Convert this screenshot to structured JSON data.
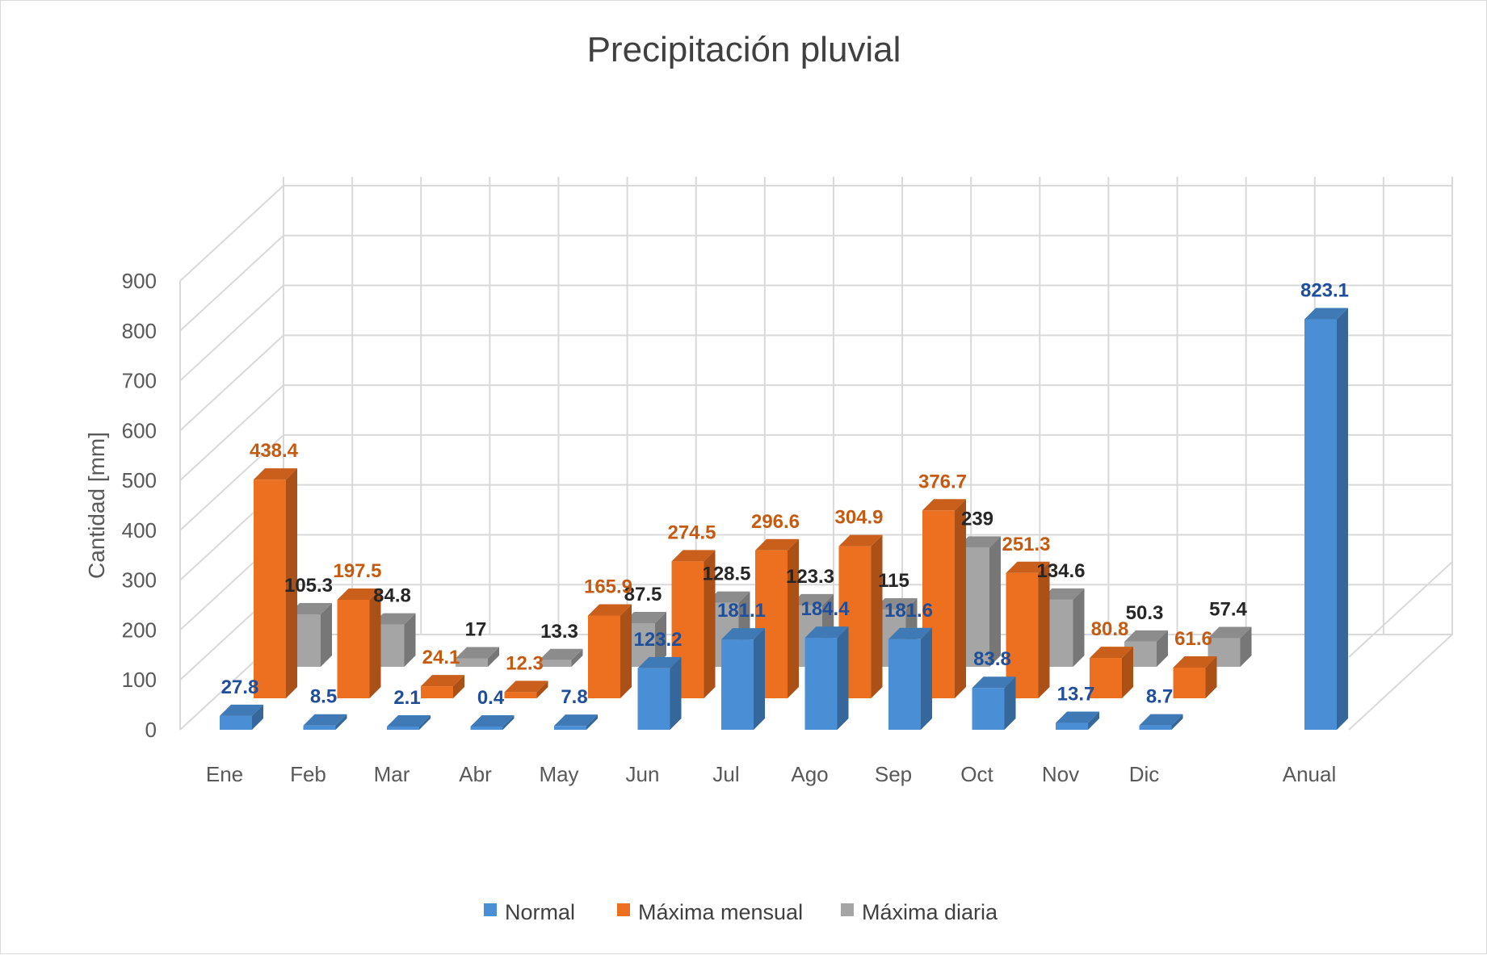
{
  "chart_data": {
    "type": "bar",
    "title": "Precipitación pluvial",
    "xlabel": "",
    "ylabel": "Cantidad [mm]",
    "ylim": [
      0,
      900
    ],
    "yticks": [
      "0",
      "100",
      "200",
      "300",
      "400",
      "500",
      "600",
      "700",
      "800",
      "900"
    ],
    "categories": [
      "Ene",
      "Feb",
      "Mar",
      "Abr",
      "May",
      "Jun",
      "Jul",
      "Ago",
      "Sep",
      "Oct",
      "Nov",
      "Dic",
      "Anual"
    ],
    "legend_position": "bottom",
    "grid": true,
    "series": [
      {
        "name": "Normal",
        "color": "#4a8fd6",
        "values": [
          27.8,
          8.5,
          2.1,
          0.4,
          7.8,
          123.2,
          181.1,
          184.4,
          181.6,
          83.8,
          13.7,
          8.7,
          823.1
        ],
        "labels": [
          "27.8",
          "8.5",
          "2.1",
          "0.4",
          "7.8",
          "123.2",
          "181.1",
          "184.4",
          "181.6",
          "83.8",
          "13.7",
          "8.7",
          "823.1"
        ],
        "label_color": "#1f4e9a"
      },
      {
        "name": "Máxima mensual",
        "color": "#ed7020",
        "values": [
          438.4,
          197.5,
          24.1,
          12.3,
          165.9,
          274.5,
          296.6,
          304.9,
          376.7,
          251.3,
          80.8,
          61.6,
          null
        ],
        "labels": [
          "438.4",
          "197.5",
          "24.1",
          "12.3",
          "165.9",
          "274.5",
          "296.6",
          "304.9",
          "376.7",
          "251.3",
          "80.8",
          "61.6",
          ""
        ],
        "label_color": "#c55a11"
      },
      {
        "name": "Máxima diaria",
        "color": "#a5a5a5",
        "values": [
          105.3,
          84.8,
          17,
          13.3,
          87.5,
          128.5,
          123.3,
          115,
          239,
          134.6,
          50.3,
          57.4,
          null
        ],
        "labels": [
          "105.3",
          "84.8",
          "17",
          "13.3",
          "87.5",
          "128.5",
          "123.3",
          "115",
          "239",
          "134.6",
          "50.3",
          "57.4",
          ""
        ],
        "label_color": "#262626"
      }
    ]
  }
}
